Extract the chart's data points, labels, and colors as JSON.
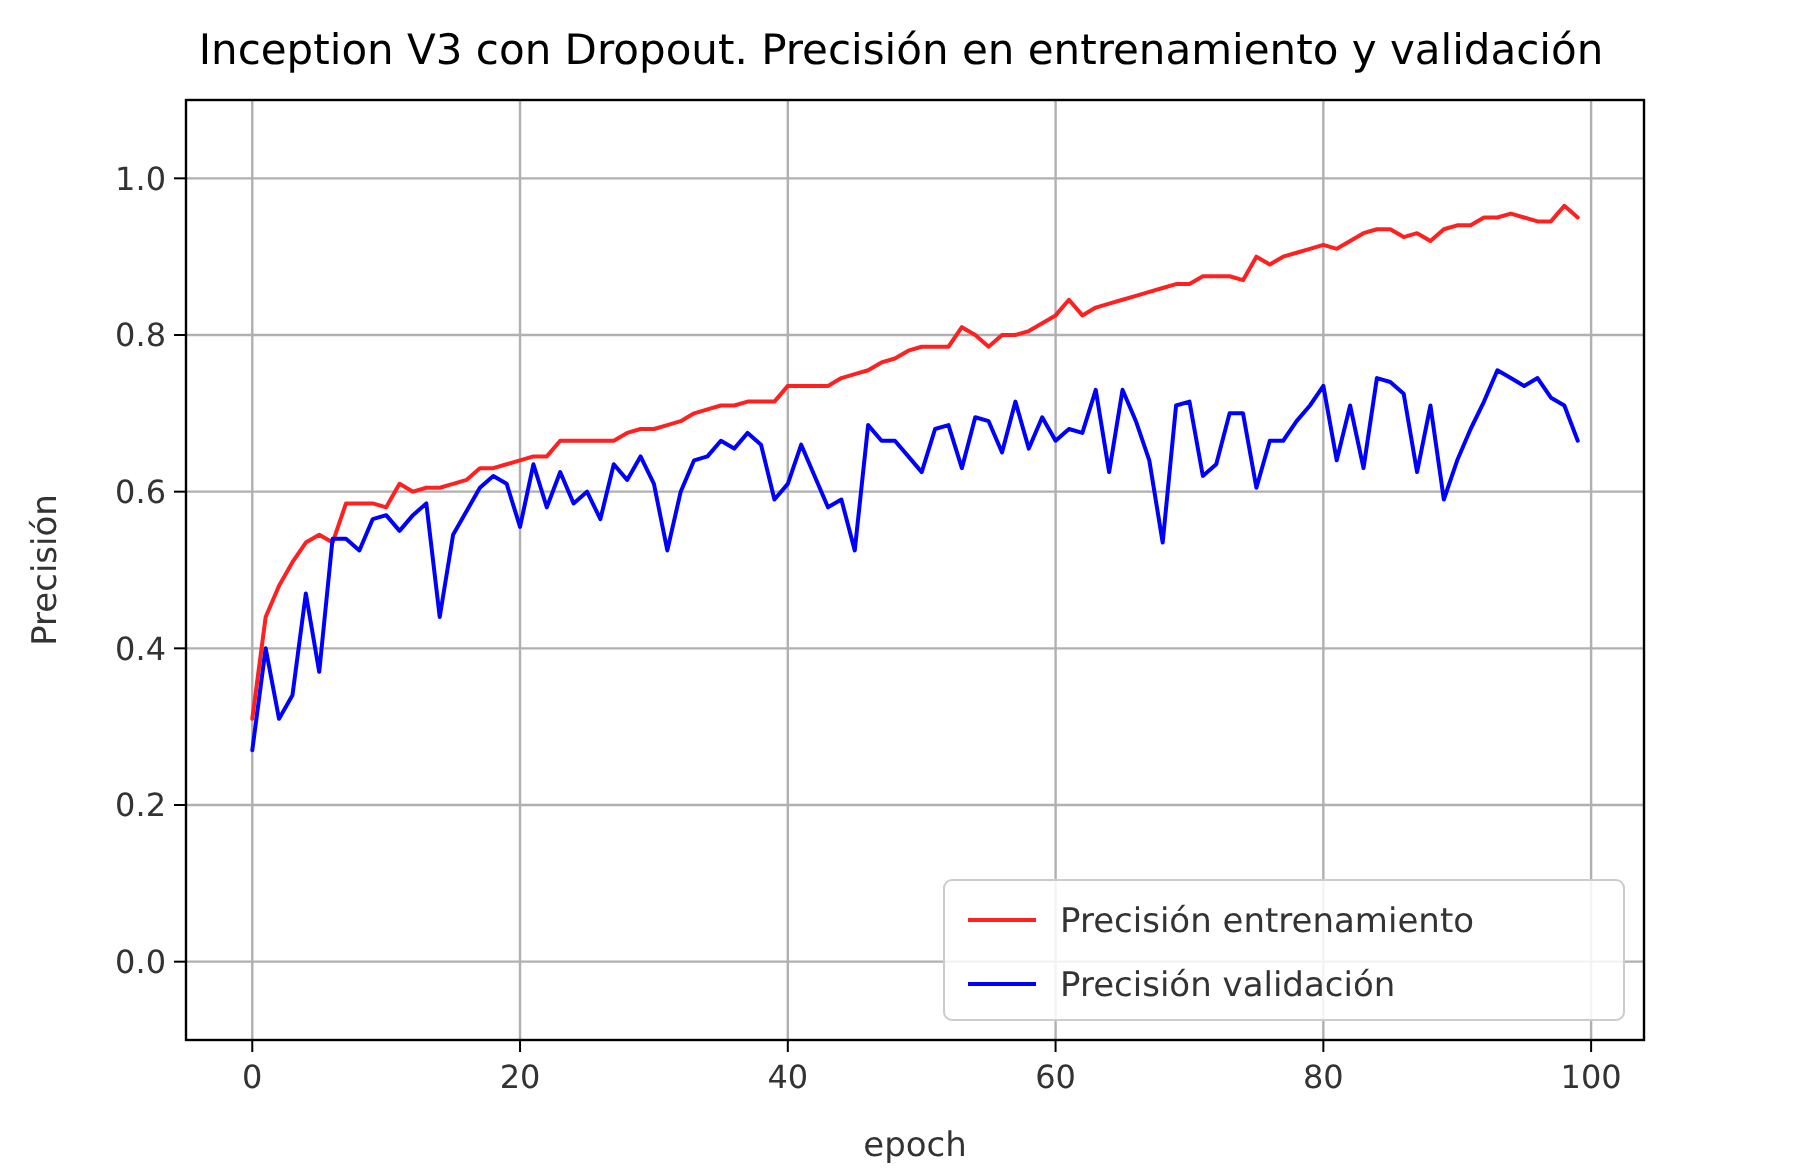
{
  "chart_data": {
    "type": "line",
    "title": "Inception V3 con Dropout. Precisión en entrenamiento y validación",
    "xlabel": "epoch",
    "ylabel": "Precisión",
    "x": [
      0,
      1,
      2,
      3,
      4,
      5,
      6,
      7,
      8,
      9,
      10,
      11,
      12,
      13,
      14,
      15,
      16,
      17,
      18,
      19,
      20,
      21,
      22,
      23,
      24,
      25,
      26,
      27,
      28,
      29,
      30,
      31,
      32,
      33,
      34,
      35,
      36,
      37,
      38,
      39,
      40,
      41,
      42,
      43,
      44,
      45,
      46,
      47,
      48,
      49,
      50,
      51,
      52,
      53,
      54,
      55,
      56,
      57,
      58,
      59,
      60,
      61,
      62,
      63,
      64,
      65,
      66,
      67,
      68,
      69,
      70,
      71,
      72,
      73,
      74,
      75,
      76,
      77,
      78,
      79,
      80,
      81,
      82,
      83,
      84,
      85,
      86,
      87,
      88,
      89,
      90,
      91,
      92,
      93,
      94,
      95,
      96,
      97,
      98,
      99
    ],
    "series": [
      {
        "name": "Precisión entrenamiento",
        "color": "#ff2020",
        "values": [
          0.31,
          0.44,
          0.48,
          0.51,
          0.535,
          0.545,
          0.535,
          0.585,
          0.585,
          0.585,
          0.58,
          0.61,
          0.6,
          0.605,
          0.605,
          0.61,
          0.615,
          0.63,
          0.63,
          0.635,
          0.64,
          0.645,
          0.645,
          0.665,
          0.665,
          0.665,
          0.665,
          0.665,
          0.675,
          0.68,
          0.68,
          0.685,
          0.69,
          0.7,
          0.705,
          0.71,
          0.71,
          0.715,
          0.715,
          0.715,
          0.735,
          0.735,
          0.735,
          0.735,
          0.745,
          0.75,
          0.755,
          0.765,
          0.77,
          0.78,
          0.785,
          0.785,
          0.785,
          0.81,
          0.8,
          0.785,
          0.8,
          0.8,
          0.805,
          0.815,
          0.825,
          0.845,
          0.825,
          0.835,
          0.84,
          0.845,
          0.85,
          0.855,
          0.86,
          0.865,
          0.865,
          0.875,
          0.875,
          0.875,
          0.87,
          0.9,
          0.89,
          0.9,
          0.905,
          0.91,
          0.915,
          0.91,
          0.92,
          0.93,
          0.935,
          0.935,
          0.925,
          0.93,
          0.92,
          0.935,
          0.94,
          0.94,
          0.95,
          0.95,
          0.955,
          0.95,
          0.945,
          0.945,
          0.965,
          0.95
        ]
      },
      {
        "name": "Precisión validación",
        "color": "#0000ff",
        "values": [
          0.27,
          0.4,
          0.31,
          0.34,
          0.47,
          0.37,
          0.54,
          0.54,
          0.525,
          0.565,
          0.57,
          0.55,
          0.57,
          0.585,
          0.44,
          0.545,
          0.575,
          0.605,
          0.62,
          0.61,
          0.555,
          0.635,
          0.58,
          0.625,
          0.585,
          0.6,
          0.565,
          0.635,
          0.615,
          0.645,
          0.61,
          0.525,
          0.6,
          0.64,
          0.645,
          0.665,
          0.655,
          0.675,
          0.66,
          0.59,
          0.61,
          0.66,
          0.62,
          0.58,
          0.59,
          0.525,
          0.685,
          0.665,
          0.665,
          0.645,
          0.625,
          0.68,
          0.685,
          0.63,
          0.695,
          0.69,
          0.65,
          0.715,
          0.655,
          0.695,
          0.665,
          0.68,
          0.675,
          0.73,
          0.625,
          0.73,
          0.69,
          0.64,
          0.535,
          0.71,
          0.715,
          0.62,
          0.635,
          0.7,
          0.7,
          0.605,
          0.665,
          0.665,
          0.69,
          0.71,
          0.735,
          0.64,
          0.71,
          0.63,
          0.745,
          0.74,
          0.725,
          0.625,
          0.71,
          0.59,
          0.64,
          0.68,
          0.715,
          0.755,
          0.745,
          0.735,
          0.745,
          0.72,
          0.71,
          0.665
        ]
      }
    ],
    "xlim": [
      -4.95,
      103.95
    ],
    "ylim": [
      -0.1,
      1.1
    ],
    "xticks": [
      0,
      20,
      40,
      60,
      80,
      100
    ],
    "yticks": [
      {
        "value": 0,
        "label": "0.0"
      },
      {
        "value": 0.2,
        "label": "0.2"
      },
      {
        "value": 0.4,
        "label": "0.4"
      },
      {
        "value": 0.6,
        "label": "0.6"
      },
      {
        "value": 0.8,
        "label": "0.8"
      },
      {
        "value": 1,
        "label": "1.0"
      }
    ],
    "grid": true,
    "legend": "bottom right",
    "line_style": "solid",
    "marker": "none"
  }
}
